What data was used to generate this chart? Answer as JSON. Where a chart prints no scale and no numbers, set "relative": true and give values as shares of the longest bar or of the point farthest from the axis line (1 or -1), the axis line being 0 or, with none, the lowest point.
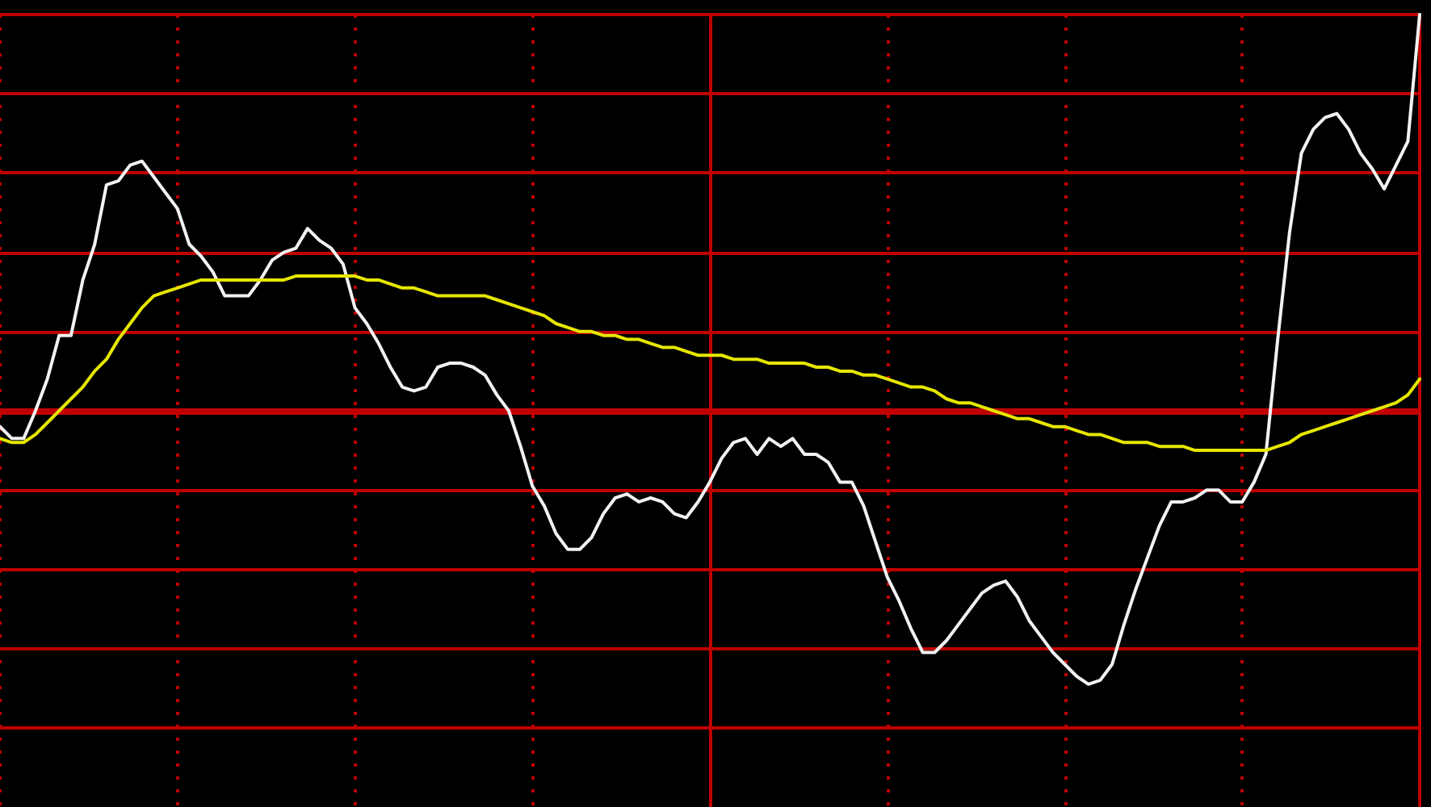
{
  "chart_data": {
    "type": "line",
    "relative": true,
    "grid": "x",
    "ref_lines": [
      {
        "axis": "y",
        "value": 1,
        "color": "#c00000"
      },
      {
        "axis": "y",
        "value": 0.8,
        "color": "#c00000"
      },
      {
        "axis": "y",
        "value": 0.6,
        "color": "#c00000"
      },
      {
        "axis": "y",
        "value": 0.4,
        "color": "#c00000"
      },
      {
        "axis": "y",
        "value": 0.2,
        "color": "#c00000"
      },
      {
        "axis": "y",
        "value": 0,
        "color": "#c00000"
      },
      {
        "axis": "y",
        "value": -0.2,
        "color": "#c00000"
      },
      {
        "axis": "y",
        "value": -0.4,
        "color": "#c00000"
      },
      {
        "axis": "y",
        "value": -0.6,
        "color": "#c00000"
      },
      {
        "axis": "y",
        "value": -0.8,
        "color": "#c00000"
      }
    ],
    "categories": [
      null,
      null,
      null,
      null,
      null,
      null,
      null,
      null,
      null,
      null,
      null,
      null,
      null,
      null,
      null,
      null,
      null,
      null,
      null,
      null,
      null,
      null,
      null,
      null,
      null,
      null,
      null,
      null,
      null,
      null,
      null,
      null,
      null,
      null,
      null,
      null,
      null,
      null,
      null,
      null,
      null,
      null,
      null,
      null,
      null,
      null,
      null,
      null,
      null,
      null,
      null,
      null,
      null,
      null,
      null,
      null,
      null,
      null,
      null,
      null,
      null,
      null,
      null,
      null,
      null,
      null,
      null,
      null,
      null,
      null,
      null,
      null,
      null,
      null,
      null,
      null,
      null,
      null,
      null,
      null,
      null,
      null,
      null,
      null,
      null,
      null,
      null,
      null,
      null,
      null,
      null,
      null,
      null,
      null,
      null,
      null,
      null,
      null,
      null,
      null,
      null,
      null,
      null,
      null,
      null,
      null,
      null,
      null,
      null,
      null,
      null,
      null,
      null,
      null,
      null,
      null,
      null,
      null,
      null,
      null,
      null
    ],
    "series": [
      {
        "color": "#f2f2f2",
        "values": [
          -0.04,
          -0.07,
          -0.07,
          0,
          0.08,
          0.19,
          0.19,
          0.33,
          0.42,
          0.57,
          0.58,
          0.62,
          0.63,
          0.59,
          0.55,
          0.51,
          0.42,
          0.39,
          0.35,
          0.29,
          0.29,
          0.29,
          0.33,
          0.38,
          0.4,
          0.41,
          0.46,
          0.43,
          0.41,
          0.37,
          0.26,
          0.22,
          0.17,
          0.11,
          0.06,
          0.05,
          0.06,
          0.11,
          0.12,
          0.12,
          0.11,
          0.09,
          0.04,
          0,
          -0.09,
          -0.19,
          -0.24,
          -0.31,
          -0.35,
          -0.35,
          -0.32,
          -0.26,
          -0.22,
          -0.21,
          -0.23,
          -0.22,
          -0.23,
          -0.26,
          -0.27,
          -0.23,
          -0.18,
          -0.12,
          -0.08,
          -0.07,
          -0.11,
          -0.07,
          -0.09,
          -0.07,
          -0.11,
          -0.11,
          -0.13,
          -0.18,
          -0.18,
          -0.24,
          -0.33,
          -0.42,
          -0.48,
          -0.55,
          -0.61,
          -0.61,
          -0.58,
          -0.54,
          -0.5,
          -0.46,
          -0.44,
          -0.43,
          -0.47,
          -0.53,
          -0.57,
          -0.61,
          -0.64,
          -0.67,
          -0.69,
          -0.68,
          -0.64,
          -0.54,
          -0.45,
          -0.37,
          -0.29,
          -0.23,
          -0.23,
          -0.22,
          -0.2,
          -0.2,
          -0.23,
          -0.23,
          -0.18,
          -0.11,
          0.18,
          0.45,
          0.65,
          0.71,
          0.74,
          0.75,
          0.71,
          0.65,
          0.61,
          0.56,
          0.62,
          0.68,
          1
        ]
      },
      {
        "color": "#e6e600",
        "values": [
          -0.07,
          -0.08,
          -0.08,
          -0.06,
          -0.03,
          0,
          0.03,
          0.06,
          0.1,
          0.13,
          0.18,
          0.22,
          0.26,
          0.29,
          0.3,
          0.31,
          0.32,
          0.33,
          0.33,
          0.33,
          0.33,
          0.33,
          0.33,
          0.33,
          0.33,
          0.34,
          0.34,
          0.34,
          0.34,
          0.34,
          0.34,
          0.33,
          0.33,
          0.32,
          0.31,
          0.31,
          0.3,
          0.29,
          0.29,
          0.29,
          0.29,
          0.29,
          0.28,
          0.27,
          0.26,
          0.25,
          0.24,
          0.22,
          0.21,
          0.2,
          0.2,
          0.19,
          0.19,
          0.18,
          0.18,
          0.17,
          0.16,
          0.16,
          0.15,
          0.14,
          0.14,
          0.14,
          0.13,
          0.13,
          0.13,
          0.12,
          0.12,
          0.12,
          0.12,
          0.11,
          0.11,
          0.1,
          0.1,
          0.09,
          0.09,
          0.08,
          0.07,
          0.06,
          0.06,
          0.05,
          0.03,
          0.02,
          0.02,
          0.01,
          0,
          -0.01,
          -0.02,
          -0.02,
          -0.03,
          -0.04,
          -0.04,
          -0.05,
          -0.06,
          -0.06,
          -0.07,
          -0.08,
          -0.08,
          -0.08,
          -0.09,
          -0.09,
          -0.09,
          -0.1,
          -0.1,
          -0.1,
          -0.1,
          -0.1,
          -0.1,
          -0.1,
          -0.09,
          -0.08,
          -0.06,
          -0.05,
          -0.04,
          -0.03,
          -0.02,
          -0.01,
          0,
          0.01,
          0.02,
          0.04,
          0.08
        ]
      }
    ]
  }
}
